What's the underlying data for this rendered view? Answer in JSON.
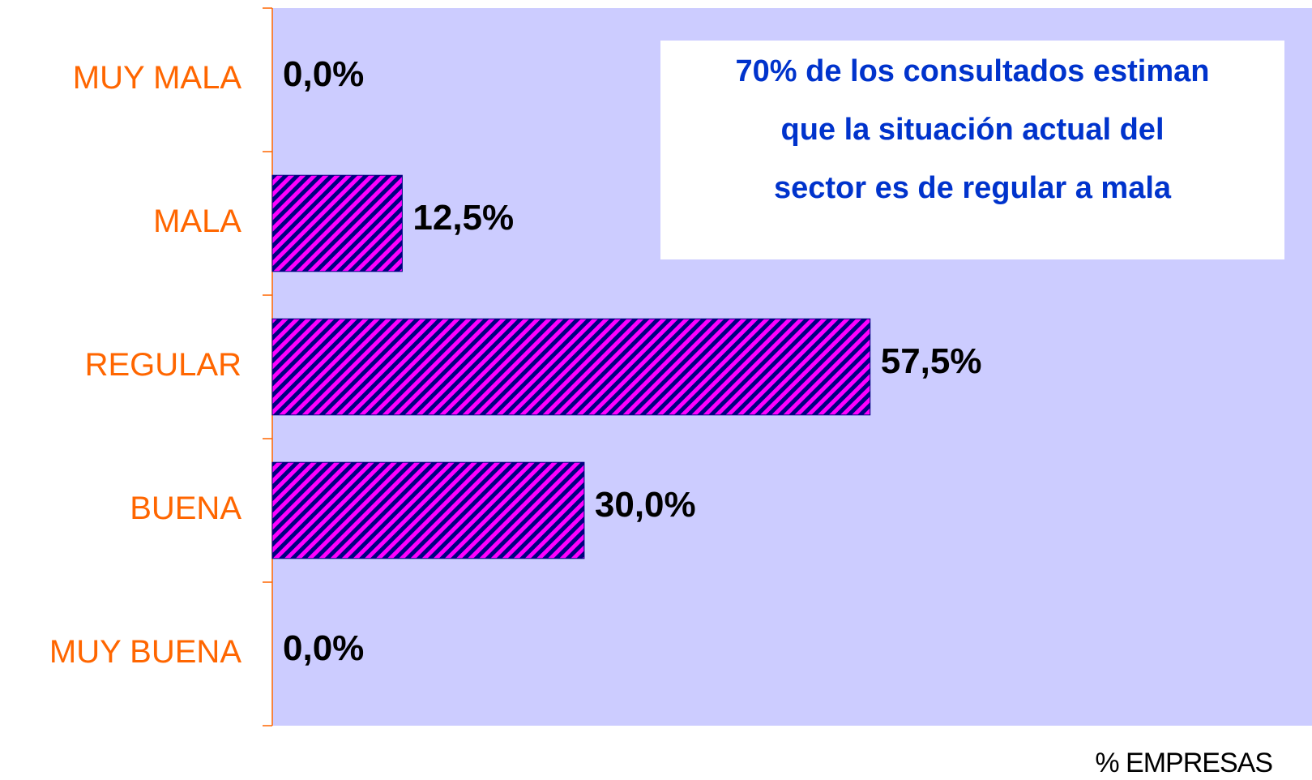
{
  "chart_data": {
    "type": "hbar",
    "categories": [
      "MUY MALA",
      "MALA",
      "REGULAR",
      "BUENA",
      "MUY BUENA"
    ],
    "values": [
      0,
      12.5,
      57.5,
      30,
      0
    ],
    "value_labels": [
      "0,0%",
      "12,5%",
      "57,5%",
      "30,0%",
      "0,0%"
    ],
    "xlim": [
      0,
      100
    ],
    "xlabel": "% EMPRESAS",
    "color": "#ff00ff",
    "hatch_color": "#000080",
    "plot_background": "#ccccff",
    "category_color": "#ff6600",
    "annotation": [
      "70% de los consultados estiman",
      "que la situación actual del",
      "sector es de regular a  mala"
    ],
    "annotation_color": "#0033cc"
  }
}
